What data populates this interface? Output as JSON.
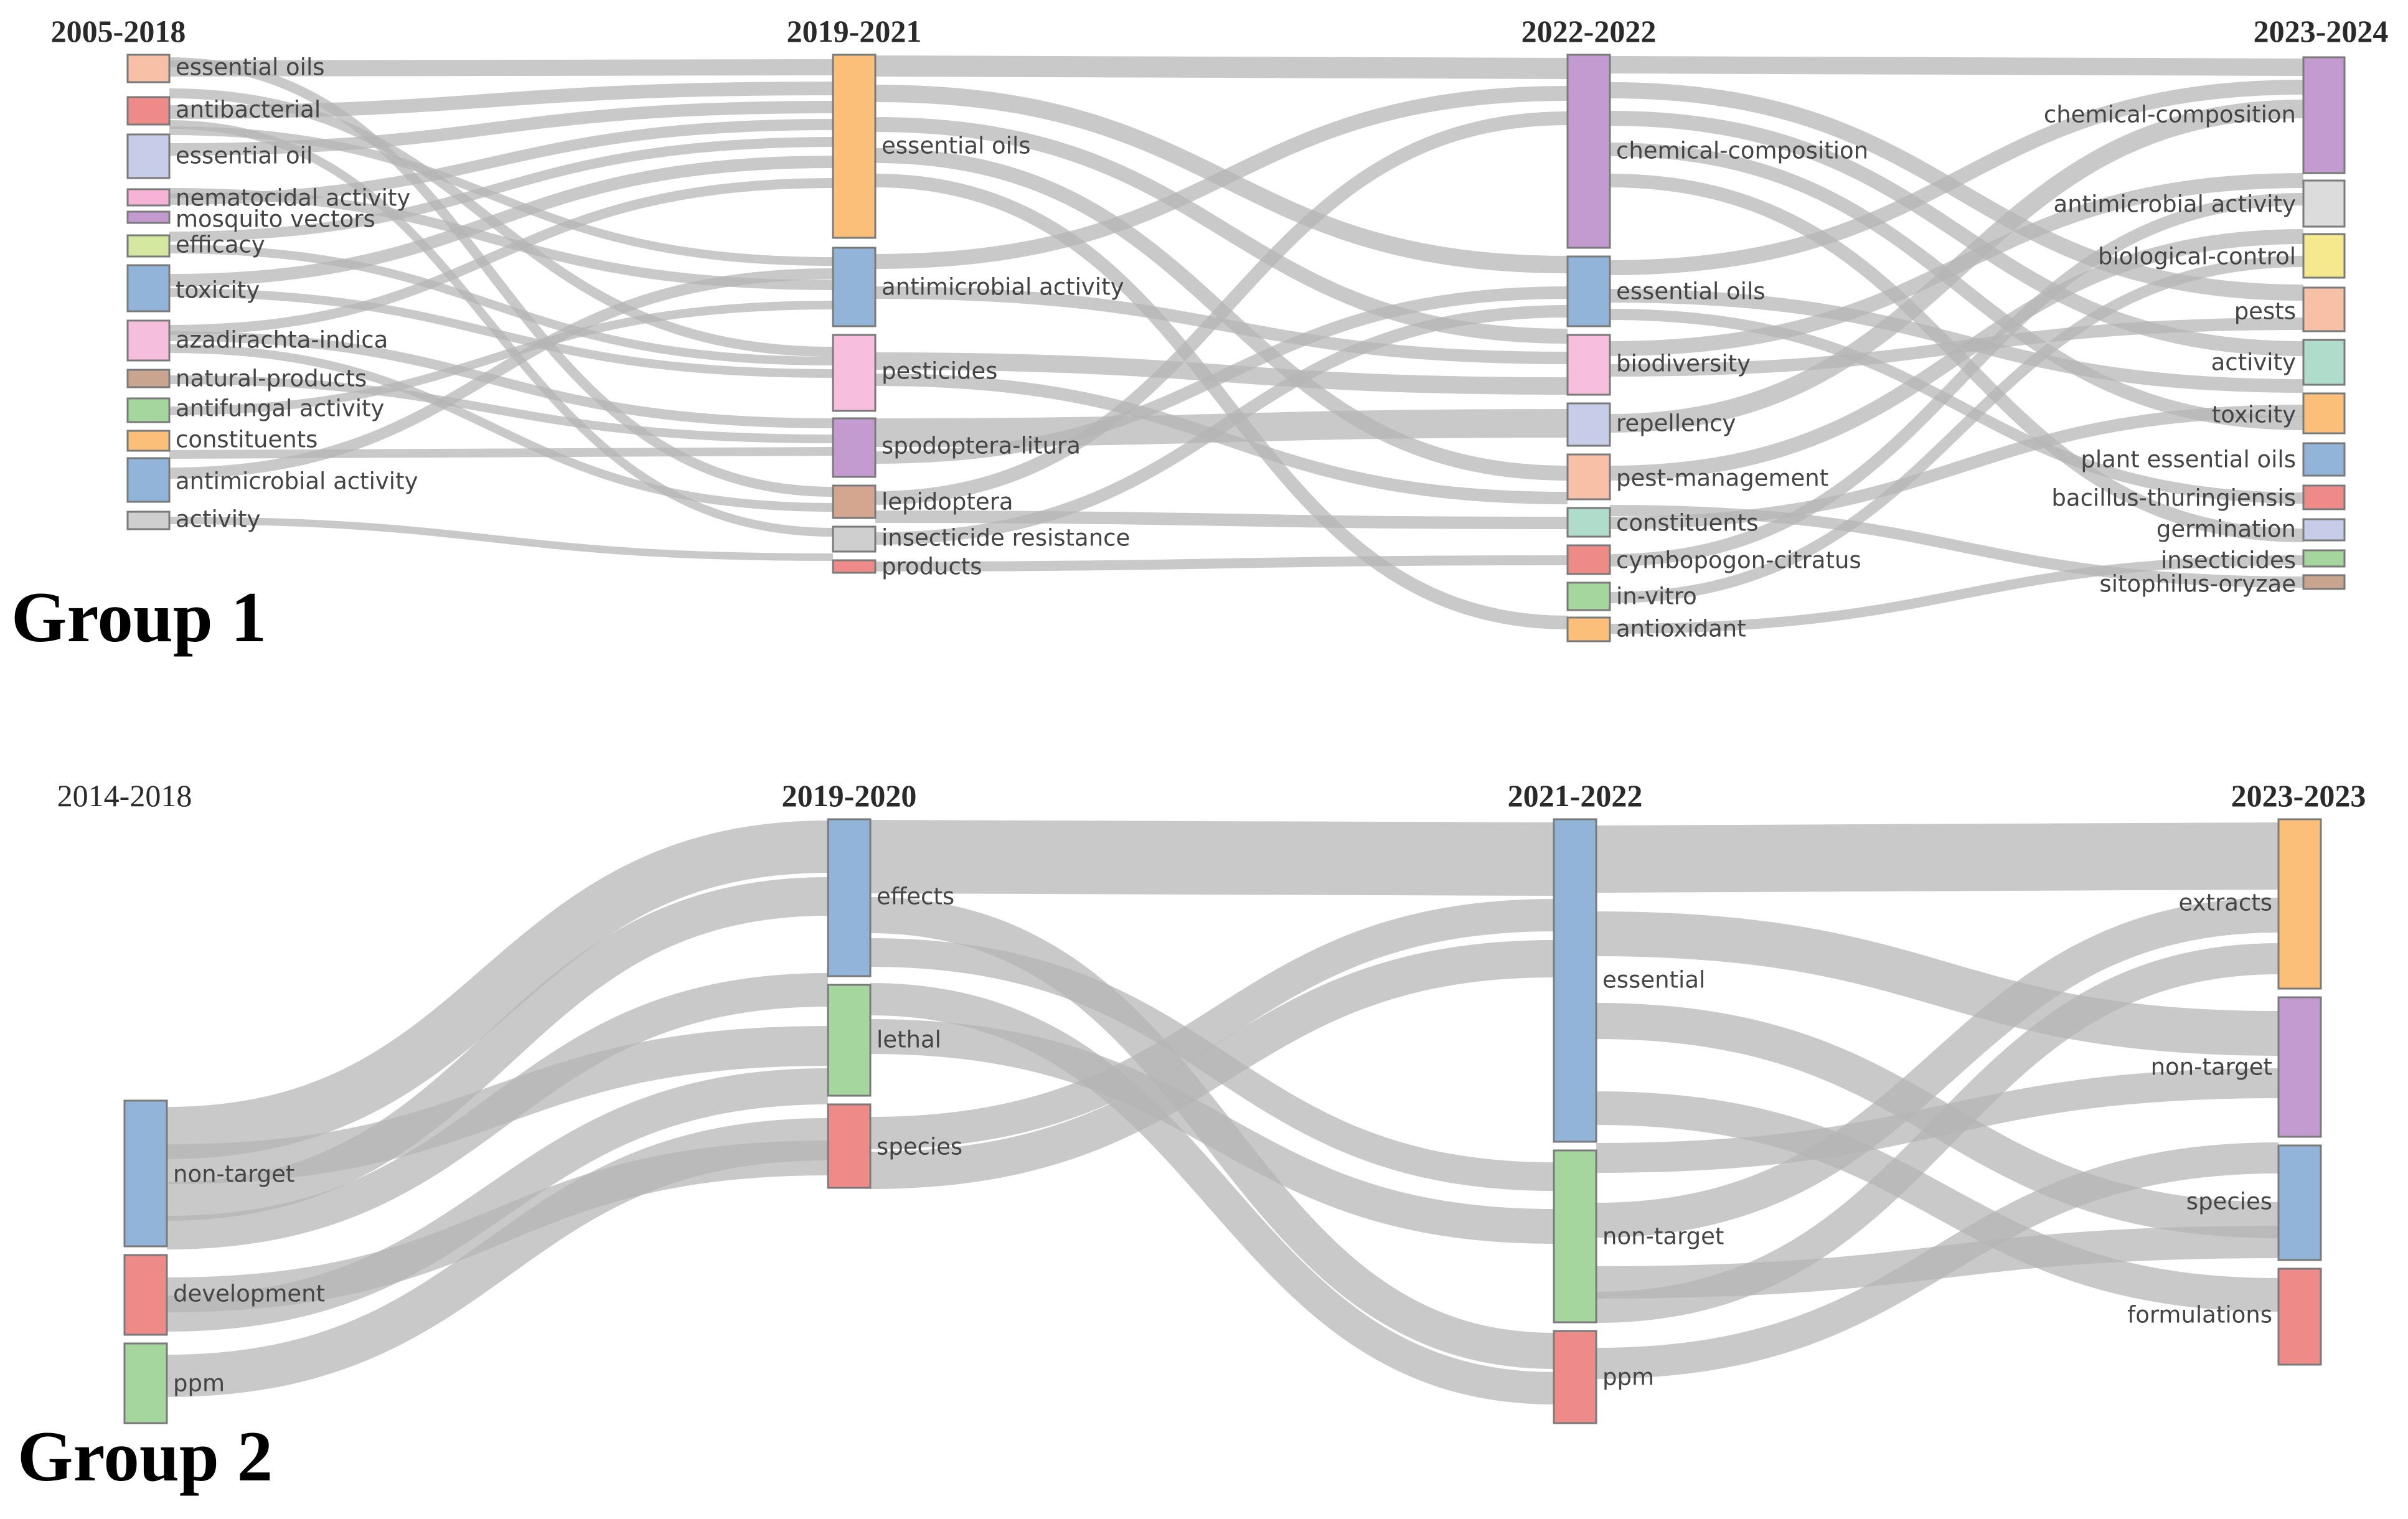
{
  "groups": [
    {
      "title": "Group 1",
      "periods": [
        "2005-2018",
        "2019-2021",
        "2022-2022",
        "2023-2024"
      ],
      "columns": [
        [
          {
            "label": "essential oils",
            "color": "#f9c0a8"
          },
          {
            "label": "antibacterial",
            "color": "#ee8a88"
          },
          {
            "label": "essential oil",
            "color": "#c7cde8"
          },
          {
            "label": "nematocidal activity",
            "color": "#f7b3d6"
          },
          {
            "label": "mosquito vectors",
            "color": "#c49bd0"
          },
          {
            "label": "efficacy",
            "color": "#d4e8a0"
          },
          {
            "label": "toxicity",
            "color": "#92b4d8"
          },
          {
            "label": "azadirachta-indica",
            "color": "#f5bedd"
          },
          {
            "label": "natural-products",
            "color": "#c9a48e"
          },
          {
            "label": "antifungal activity",
            "color": "#a5d69e"
          },
          {
            "label": "constituents",
            "color": "#fbbf79"
          },
          {
            "label": "antimicrobial activity",
            "color": "#92b4d8"
          },
          {
            "label": "activity",
            "color": "#cfcfcf"
          }
        ],
        [
          {
            "label": "essential oils",
            "color": "#fbbf79"
          },
          {
            "label": "antimicrobial activity",
            "color": "#92b4d8"
          },
          {
            "label": "pesticides",
            "color": "#f7bedd"
          },
          {
            "label": "spodoptera-litura",
            "color": "#c49bd0"
          },
          {
            "label": "lepidoptera",
            "color": "#d4a690"
          },
          {
            "label": "insecticide resistance",
            "color": "#cfcfcf"
          },
          {
            "label": "products",
            "color": "#ee8a88"
          }
        ],
        [
          {
            "label": "chemical-composition",
            "color": "#c49bd0"
          },
          {
            "label": "essential oils",
            "color": "#92b4d8"
          },
          {
            "label": "biodiversity",
            "color": "#f7bedd"
          },
          {
            "label": "repellency",
            "color": "#c7cde8"
          },
          {
            "label": "pest-management",
            "color": "#f9c0a8"
          },
          {
            "label": "constituents",
            "color": "#b0dccb"
          },
          {
            "label": "cymbopogon-citratus",
            "color": "#ee8a88"
          },
          {
            "label": "in-vitro",
            "color": "#a5d69e"
          },
          {
            "label": "antioxidant",
            "color": "#fbbf79"
          }
        ],
        [
          {
            "label": "chemical-composition",
            "color": "#c49bd0"
          },
          {
            "label": "antimicrobial activity",
            "color": "#dcdcdc"
          },
          {
            "label": "biological-control",
            "color": "#f6e88c"
          },
          {
            "label": "pests",
            "color": "#f9c0a8"
          },
          {
            "label": "activity",
            "color": "#b0dccb"
          },
          {
            "label": "toxicity",
            "color": "#fbbf79"
          },
          {
            "label": "plant essential oils",
            "color": "#92b4d8"
          },
          {
            "label": "bacillus-thuringiensis",
            "color": "#ee8a88"
          },
          {
            "label": "germination",
            "color": "#c7cde8"
          },
          {
            "label": "insecticides",
            "color": "#a5d69e"
          },
          {
            "label": "sitophilus-oryzae",
            "color": "#c9a48e"
          }
        ]
      ]
    },
    {
      "title": "Group 2",
      "periods": [
        "2014-2018",
        "2019-2020",
        "2021-2022",
        "2023-2023"
      ],
      "columns": [
        [
          {
            "label": "non-target",
            "color": "#92b4d8"
          },
          {
            "label": "development",
            "color": "#ee8a88"
          },
          {
            "label": "ppm",
            "color": "#a5d69e"
          }
        ],
        [
          {
            "label": "effects",
            "color": "#92b4d8"
          },
          {
            "label": "lethal",
            "color": "#a5d69e"
          },
          {
            "label": "species",
            "color": "#ee8a88"
          }
        ],
        [
          {
            "label": "essential",
            "color": "#92b4d8"
          },
          {
            "label": "non-target",
            "color": "#a5d69e"
          },
          {
            "label": "ppm",
            "color": "#ee8a88"
          }
        ],
        [
          {
            "label": "extracts",
            "color": "#fbbf79"
          },
          {
            "label": "non-target",
            "color": "#c49bd0"
          },
          {
            "label": "species",
            "color": "#92b4d8"
          },
          {
            "label": "formulations",
            "color": "#ee8a88"
          }
        ]
      ]
    }
  ]
}
